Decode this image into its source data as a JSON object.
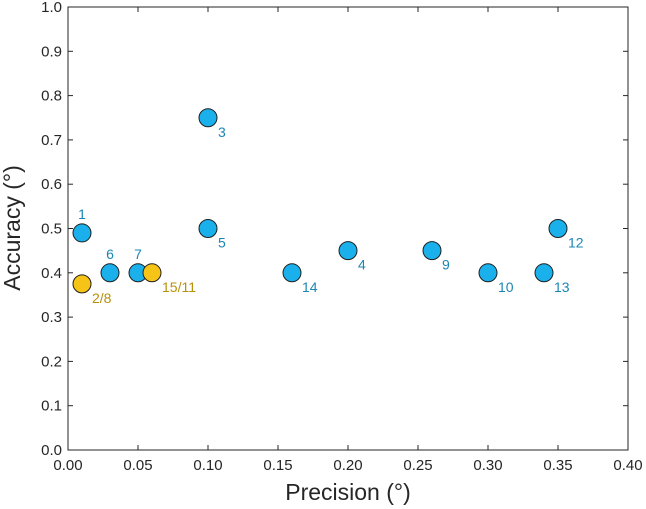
{
  "chart_data": {
    "type": "scatter",
    "title": "",
    "xlabel": "Precision (°)",
    "ylabel": "Accuracy (°)",
    "xlim": [
      0,
      0.4
    ],
    "ylim": [
      0,
      1.0
    ],
    "x_ticks": [
      0.0,
      0.05,
      0.1,
      0.15,
      0.2,
      0.25,
      0.3,
      0.35,
      0.4
    ],
    "x_tick_labels": [
      "0.00",
      "0.05",
      "0.10",
      "0.15",
      "0.20",
      "0.25",
      "0.30",
      "0.35",
      "0.40"
    ],
    "y_ticks": [
      0.0,
      0.1,
      0.2,
      0.3,
      0.4,
      0.5,
      0.6,
      0.7,
      0.8,
      0.9,
      1.0
    ],
    "y_tick_labels": [
      "0.0",
      "0.1",
      "0.2",
      "0.3",
      "0.4",
      "0.5",
      "0.6",
      "0.7",
      "0.8",
      "0.9",
      "1.0"
    ],
    "grid": false,
    "colors": {
      "blue_series": "#19b0ec",
      "orange_series": "#f6c417",
      "blue_label": "#1b86b3",
      "orange_label": "#b8900c",
      "axis": "#262626"
    },
    "series": [
      {
        "name": "blue",
        "points": [
          {
            "label": "1",
            "x": 0.01,
            "y": 0.49,
            "label_pos": "above"
          },
          {
            "label": "6",
            "x": 0.03,
            "y": 0.4,
            "label_pos": "above"
          },
          {
            "label": "7",
            "x": 0.05,
            "y": 0.4,
            "label_pos": "above"
          },
          {
            "label": "3",
            "x": 0.1,
            "y": 0.75,
            "label_pos": "below-right"
          },
          {
            "label": "5",
            "x": 0.1,
            "y": 0.5,
            "label_pos": "below-right"
          },
          {
            "label": "14",
            "x": 0.16,
            "y": 0.4,
            "label_pos": "below-right"
          },
          {
            "label": "4",
            "x": 0.2,
            "y": 0.45,
            "label_pos": "below-right"
          },
          {
            "label": "9",
            "x": 0.26,
            "y": 0.45,
            "label_pos": "below-right"
          },
          {
            "label": "10",
            "x": 0.3,
            "y": 0.4,
            "label_pos": "below-right"
          },
          {
            "label": "13",
            "x": 0.34,
            "y": 0.4,
            "label_pos": "below-right"
          },
          {
            "label": "12",
            "x": 0.35,
            "y": 0.5,
            "label_pos": "below-right"
          }
        ]
      },
      {
        "name": "orange",
        "points": [
          {
            "label": "2/8",
            "x": 0.01,
            "y": 0.375,
            "label_pos": "below-right"
          },
          {
            "label": "15/11",
            "x": 0.06,
            "y": 0.4,
            "label_pos": "below-right"
          }
        ]
      }
    ]
  }
}
